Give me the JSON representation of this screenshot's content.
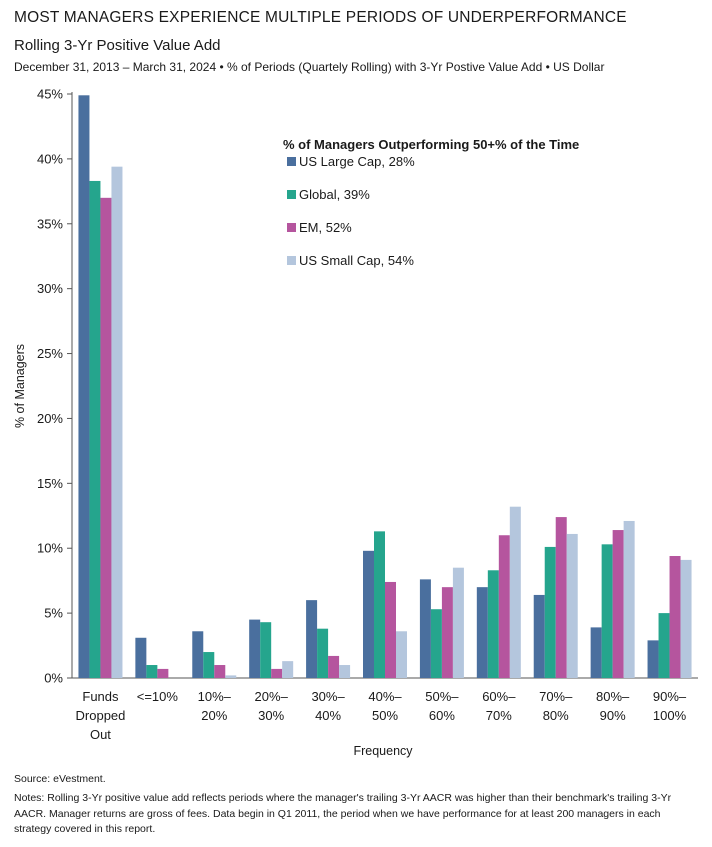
{
  "header": {
    "title": "MOST MANAGERS EXPERIENCE MULTIPLE PERIODS OF UNDERPERFORMANCE",
    "subtitle": "Rolling 3-Yr Positive Value Add",
    "note": "December 31, 2013 – March 31, 2024 • % of Periods (Quartely Rolling) with 3-Yr Postive Value Add • US Dollar"
  },
  "footer": {
    "source": "Source: eVestment.",
    "notes": "Notes: Rolling 3-Yr positive value add reflects periods where the manager's trailing 3-Yr AACR was higher than their benchmark's trailing 3-Yr AACR. Manager returns are gross of fees. Data begin in Q1 2011, the period when we have performance for at least 200 managers in each strategy covered in this report."
  },
  "colors": {
    "us_large_cap": "#4a6f9e",
    "global": "#25a58d",
    "em": "#b5559e",
    "us_small_cap": "#b4c6dd"
  },
  "chart_data": {
    "type": "bar",
    "xlabel": "Frequency",
    "ylabel": "% of Managers",
    "ylim": [
      0,
      45
    ],
    "yticks": [
      "0%",
      "5%",
      "10%",
      "15%",
      "20%",
      "25%",
      "30%",
      "35%",
      "40%",
      "45%"
    ],
    "ytick_values": [
      0,
      5,
      10,
      15,
      20,
      25,
      30,
      35,
      40,
      45
    ],
    "grid": false,
    "legend_title": "% of Managers Outperforming 50+% of the Time",
    "legend_placement": "top-center",
    "categories": [
      [
        "Funds",
        "Dropped",
        "Out"
      ],
      [
        "<=10%"
      ],
      [
        "10%–",
        "20%"
      ],
      [
        "20%–",
        "30%"
      ],
      [
        "30%–",
        "40%"
      ],
      [
        "40%–",
        "50%"
      ],
      [
        "50%–",
        "60%"
      ],
      [
        "60%–",
        "70%"
      ],
      [
        "70%–",
        "80%"
      ],
      [
        "80%–",
        "90%"
      ],
      [
        "90%–",
        "100%"
      ]
    ],
    "series": [
      {
        "name": "US Large Cap, 28%",
        "color_key": "us_large_cap",
        "values": [
          44.9,
          3.1,
          3.6,
          4.5,
          6.0,
          9.8,
          7.6,
          7.0,
          6.4,
          3.9,
          2.9
        ]
      },
      {
        "name": "Global, 39%",
        "color_key": "global",
        "values": [
          38.3,
          1.0,
          2.0,
          4.3,
          3.8,
          11.3,
          5.3,
          8.3,
          10.1,
          10.3,
          5.0
        ]
      },
      {
        "name": "EM, 52%",
        "color_key": "em",
        "values": [
          37.0,
          0.7,
          1.0,
          0.7,
          1.7,
          7.4,
          7.0,
          11.0,
          12.4,
          11.4,
          9.4
        ]
      },
      {
        "name": "US Small Cap, 54%",
        "color_key": "us_small_cap",
        "values": [
          39.4,
          0.0,
          0.2,
          1.3,
          1.0,
          3.6,
          8.5,
          13.2,
          11.1,
          12.1,
          9.1
        ]
      }
    ]
  }
}
